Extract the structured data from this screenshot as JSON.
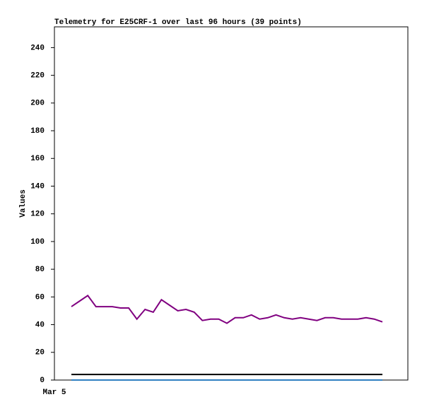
{
  "chart_data": {
    "type": "line",
    "title": "Telemetry for E25CRF-1 over last 96 hours (39 points)",
    "y_label": "Values",
    "x_tick_label": "Mar 5",
    "categories": [
      null,
      null,
      null,
      null,
      null,
      null,
      null,
      null,
      null,
      null,
      null,
      null,
      null,
      null,
      null,
      null,
      null,
      null,
      null,
      null,
      null,
      null,
      null,
      null,
      null,
      null,
      null,
      null,
      null,
      null,
      null,
      null,
      null,
      null,
      null,
      null,
      null,
      null,
      null
    ],
    "series": [
      {
        "color": "#800080",
        "values": [
          53,
          57,
          61,
          53,
          53,
          53,
          52,
          52,
          44,
          51,
          49,
          58,
          54,
          50,
          51,
          49,
          43,
          44,
          44,
          41,
          45,
          45,
          47,
          44,
          45,
          47,
          45,
          44,
          45,
          44,
          43,
          45,
          45,
          44,
          44,
          44,
          45,
          44,
          42
        ]
      },
      {
        "color": "#000000",
        "values": [
          4,
          4,
          4,
          4,
          4,
          4,
          4,
          4,
          4,
          4,
          4,
          4,
          4,
          4,
          4,
          4,
          4,
          4,
          4,
          4,
          4,
          4,
          4,
          4,
          4,
          4,
          4,
          4,
          4,
          4,
          4,
          4,
          4,
          4,
          4,
          4,
          4,
          4,
          4
        ]
      },
      {
        "color": "#2f7fc1",
        "values": [
          0,
          0,
          0,
          0,
          0,
          0,
          0,
          0,
          0,
          0,
          0,
          0,
          0,
          0,
          0,
          0,
          0,
          0,
          0,
          0,
          0,
          0,
          0,
          0,
          0,
          0,
          0,
          0,
          0,
          0,
          0,
          0,
          0,
          0,
          0,
          0,
          0,
          0,
          0
        ]
      }
    ],
    "ylim": [
      0,
      255
    ],
    "yticks": [
      0,
      20,
      40,
      60,
      80,
      100,
      120,
      140,
      160,
      180,
      200,
      220,
      240
    ]
  }
}
